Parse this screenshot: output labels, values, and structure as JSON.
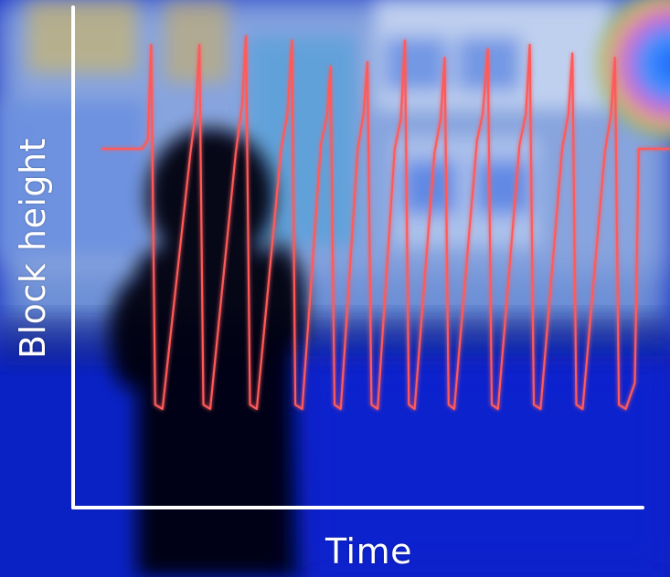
{
  "chart_data": {
    "type": "line",
    "title": "",
    "xlabel": "Time",
    "ylabel": "Block height",
    "grid": false,
    "legend": "none",
    "colors": {
      "line": "#ff5a5a",
      "line_glow": "#ff2a2a",
      "axis": "#ffffff",
      "background": "#0a1fb8"
    },
    "xlim": [
      0,
      100
    ],
    "ylim": [
      0,
      100
    ],
    "series": [
      {
        "values": [
          [
            0,
            72
          ],
          [
            7,
            72
          ],
          [
            8,
            74
          ],
          [
            8.6,
            96
          ],
          [
            9.3,
            13
          ],
          [
            10.6,
            12
          ],
          [
            15.5,
            71
          ],
          [
            16.4,
            80
          ],
          [
            17.1,
            96
          ],
          [
            17.8,
            13
          ],
          [
            19,
            12
          ],
          [
            23.5,
            71
          ],
          [
            24.6,
            82
          ],
          [
            25.3,
            98
          ],
          [
            26,
            13
          ],
          [
            27.2,
            12
          ],
          [
            31.5,
            72
          ],
          [
            32.6,
            80
          ],
          [
            33.4,
            97
          ],
          [
            34,
            13
          ],
          [
            35.2,
            12
          ],
          [
            38.5,
            73
          ],
          [
            39.6,
            80
          ],
          [
            40.2,
            91
          ],
          [
            40.9,
            13
          ],
          [
            42,
            12
          ],
          [
            45,
            72
          ],
          [
            46,
            80
          ],
          [
            46.7,
            92
          ],
          [
            47.4,
            13
          ],
          [
            48.5,
            12
          ],
          [
            51.5,
            72
          ],
          [
            52.6,
            79
          ],
          [
            53.3,
            97
          ],
          [
            54,
            13
          ],
          [
            55,
            12
          ],
          [
            58.5,
            71
          ],
          [
            59.6,
            79
          ],
          [
            60.3,
            93
          ],
          [
            61,
            13
          ],
          [
            62,
            12
          ],
          [
            66,
            74
          ],
          [
            67,
            80
          ],
          [
            67.9,
            95
          ],
          [
            68.6,
            13
          ],
          [
            69.7,
            12
          ],
          [
            73.5,
            73
          ],
          [
            74.6,
            80
          ],
          [
            75.3,
            96
          ],
          [
            76,
            13
          ],
          [
            77.2,
            12
          ],
          [
            81,
            72
          ],
          [
            82.1,
            80
          ],
          [
            82.8,
            94
          ],
          [
            83.5,
            13
          ],
          [
            84.6,
            12
          ],
          [
            88.5,
            71
          ],
          [
            89.6,
            80
          ],
          [
            90.3,
            93
          ],
          [
            91,
            13
          ],
          [
            92.2,
            12
          ],
          [
            93.8,
            18
          ],
          [
            94.5,
            72
          ],
          [
            100,
            72
          ]
        ]
      }
    ]
  }
}
